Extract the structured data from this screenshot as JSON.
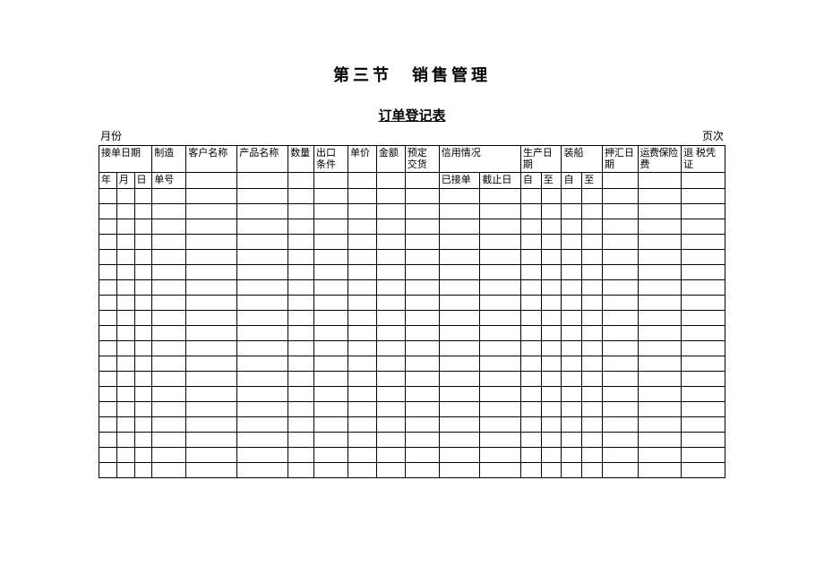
{
  "titles": {
    "main": "第三节　销售管理",
    "sub": "订单登记表"
  },
  "meta": {
    "left": "月份",
    "right": "页次"
  },
  "header": {
    "row1": {
      "receive_date": "接单日期",
      "manufacture": "制造",
      "customer": "客户名称",
      "product": "产品名称",
      "quantity": "数量",
      "export_terms": "出口条件",
      "unit_price": "单价",
      "amount": "金额",
      "scheduled_delivery": "预定交货",
      "credit_status": "信用情况",
      "production_date": "生产日期",
      "shipping": "装船",
      "remittance_date": "押汇日期",
      "freight_insurance": "运费保险 费",
      "tax_refund_voucher": "退 税凭 证"
    },
    "row2": {
      "year": "年",
      "month": "月",
      "day": "日",
      "order_no": "单号",
      "received": "已接单",
      "deadline": "截止日",
      "from1": "自",
      "to1": "至",
      "from2": "自",
      "to2": "至"
    }
  },
  "empty_rows": 19,
  "columns": {
    "widths_pct": [
      2.6,
      2.6,
      2.6,
      5.0,
      7.5,
      7.5,
      3.8,
      5.0,
      4.2,
      4.2,
      5.0,
      6.0,
      6.0,
      3.0,
      3.0,
      3.0,
      3.0,
      5.2,
      6.4,
      6.4
    ]
  }
}
